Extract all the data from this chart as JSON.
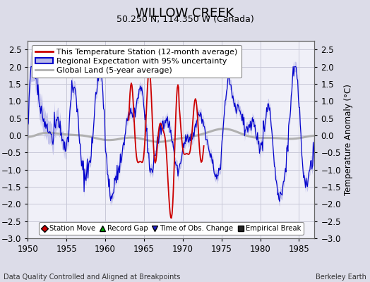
{
  "title": "WILLOW CREEK",
  "subtitle": "50.250 N, 114.350 W (Canada)",
  "ylabel": "Temperature Anomaly (°C)",
  "xlabel_left": "Data Quality Controlled and Aligned at Breakpoints",
  "xlabel_right": "Berkeley Earth",
  "xlim": [
    1950,
    1987
  ],
  "ylim": [
    -3,
    2.75
  ],
  "yticks": [
    -3,
    -2.5,
    -2,
    -1.5,
    -1,
    -0.5,
    0,
    0.5,
    1,
    1.5,
    2,
    2.5
  ],
  "xticks": [
    1950,
    1955,
    1960,
    1965,
    1970,
    1975,
    1980,
    1985
  ],
  "bg_color": "#dcdce8",
  "plot_bg_color": "#f0f0f8",
  "grid_color": "#c8c8d8",
  "red_line_color": "#cc0000",
  "blue_line_color": "#0000cc",
  "blue_fill_color": "#b8b8e8",
  "gray_line_color": "#b0b0b0",
  "title_fontsize": 13,
  "subtitle_fontsize": 9,
  "legend_fontsize": 8,
  "tick_fontsize": 8.5,
  "ylabel_fontsize": 8.5
}
